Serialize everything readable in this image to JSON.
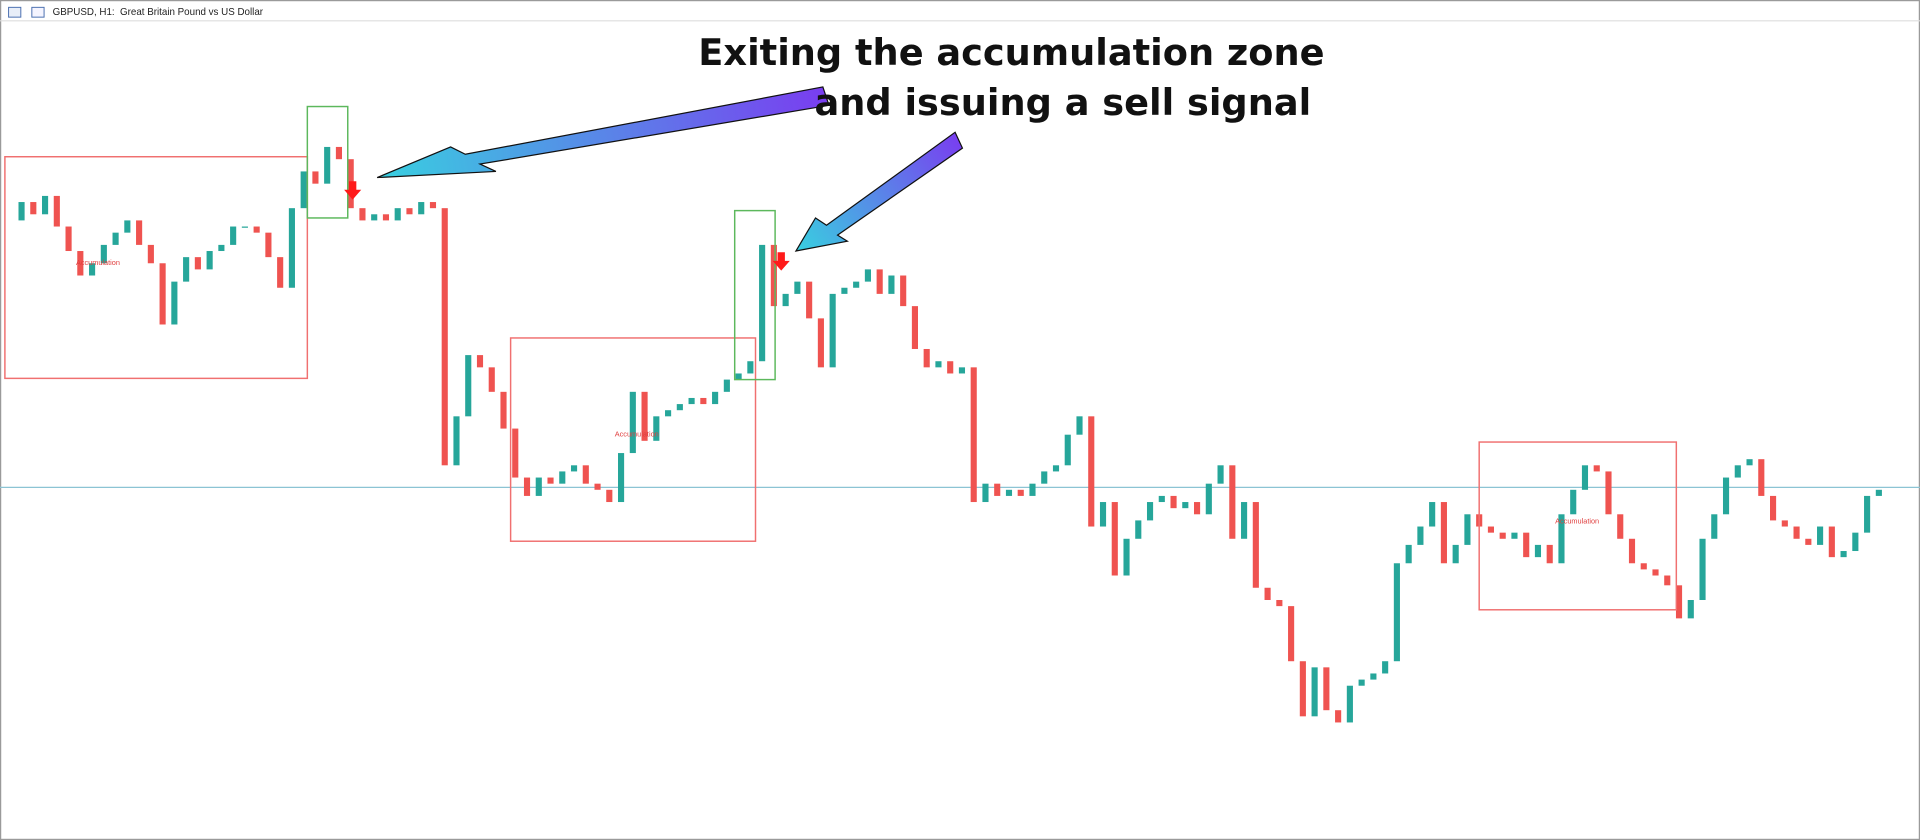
{
  "chart_data": {
    "type": "candlestick",
    "title": "GBPUSD, H1:  Great Britain Pound vs US Dollar",
    "annotation": [
      "Exiting the accumulation zone",
      "and issuing a sell signal"
    ],
    "zone_labels": [
      "Accumulation",
      "Accumulation",
      "Accumulation"
    ],
    "ylim": [
      0,
      686
    ],
    "values": [
      506,
      521,
      511,
      526,
      501,
      481,
      461,
      471,
      486,
      496,
      506,
      486,
      471,
      421,
      456,
      476,
      466,
      481,
      486,
      501,
      501,
      496,
      476,
      451,
      516,
      546,
      536,
      566,
      556,
      516,
      506,
      511,
      506,
      516,
      511,
      521,
      516,
      306,
      346,
      396,
      386,
      366,
      336,
      296,
      281,
      296,
      291,
      301,
      306,
      291,
      286,
      276,
      316,
      366,
      326,
      346,
      351,
      356,
      361,
      356,
      366,
      376,
      381,
      391,
      486,
      436,
      446,
      456,
      426,
      386,
      446,
      451,
      456,
      466,
      446,
      461,
      436,
      401,
      386,
      391,
      381,
      386,
      276,
      291,
      281,
      286,
      281,
      291,
      301,
      306,
      331,
      346,
      256,
      276,
      216,
      246,
      261,
      276,
      281,
      271,
      276,
      266,
      291,
      306,
      246,
      276,
      206,
      196,
      191,
      146,
      101,
      141,
      106,
      96,
      126,
      131,
      136,
      146,
      226,
      241,
      256,
      276,
      226,
      241,
      266,
      256,
      251,
      246,
      251,
      231,
      241,
      226,
      266,
      286,
      306,
      301,
      266,
      246,
      226,
      221,
      216,
      208,
      181,
      196,
      246,
      266,
      296,
      306,
      311,
      281,
      261,
      256,
      246,
      241,
      256,
      231,
      236,
      251,
      281,
      286
    ],
    "up_color": "#26a69a",
    "down_color": "#ef5350",
    "price_line": 288,
    "price_line_color": "#8cc4d4"
  }
}
